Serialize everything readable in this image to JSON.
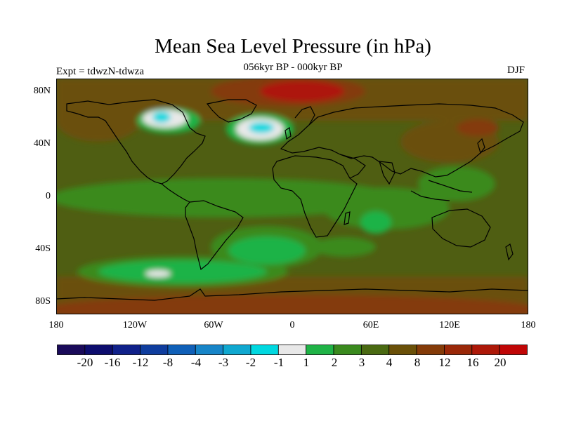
{
  "title": "Mean Sea Level Pressure (in hPa)",
  "subtitle": "056kyr BP - 000kyr BP",
  "experiment": "Expt = tdwzN-tdwza",
  "season": "DJF",
  "lat_labels": [
    "80N",
    "40N",
    "0",
    "40S",
    "80S"
  ],
  "lon_labels": [
    "180",
    "120W",
    "60W",
    "0",
    "60E",
    "120E",
    "180"
  ],
  "colorbar": {
    "labels": [
      "-20",
      "-16",
      "-12",
      "-8",
      "-4",
      "-3",
      "-2",
      "-1",
      "1",
      "2",
      "3",
      "4",
      "8",
      "12",
      "16",
      "20"
    ],
    "colors": [
      "#1a0a5a",
      "#0d0d6e",
      "#10218a",
      "#0f3d9e",
      "#1060b8",
      "#1785c8",
      "#10a8d0",
      "#00d8e0",
      "#e8e8e8",
      "#1fb346",
      "#3a8a1e",
      "#4a6a12",
      "#6a5008",
      "#843b08",
      "#9a2808",
      "#ad1808",
      "#c00606"
    ]
  },
  "colors": {
    "land_border": "#000000",
    "background": "#4f5e12"
  }
}
